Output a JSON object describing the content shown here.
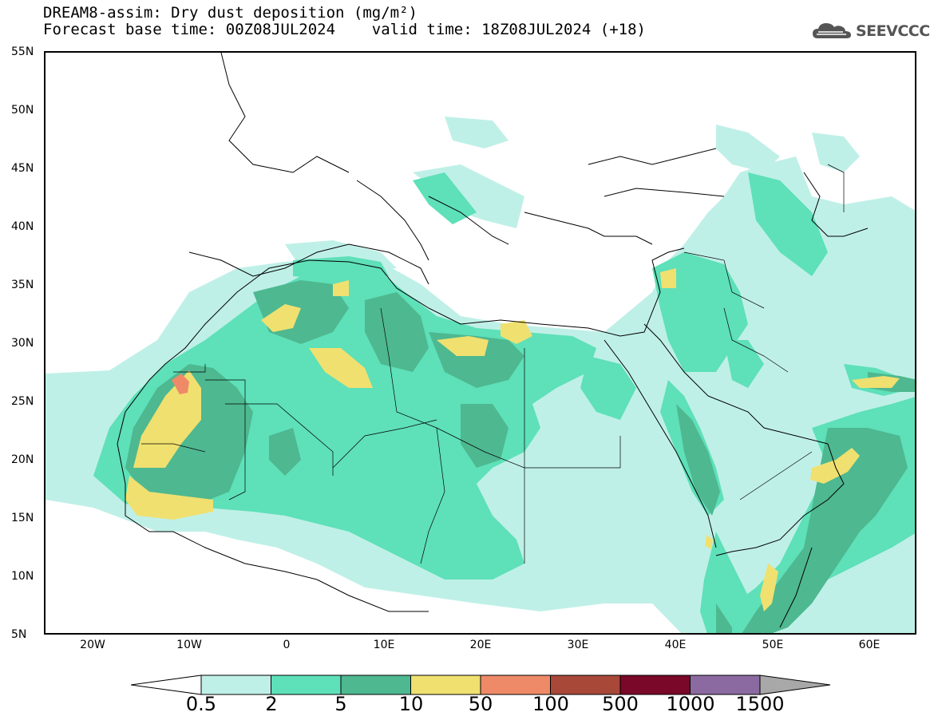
{
  "title": {
    "line1": "DREAM8-assim: Dry dust deposition (mg/m²)",
    "line2": "Forecast base time: 00Z08JUL2024    valid time: 18Z08JUL2024 (+18)"
  },
  "logo": {
    "text": "SEEVCCC",
    "icon": "cloud-icon"
  },
  "map": {
    "lat_labels": [
      "55N",
      "50N",
      "45N",
      "40N",
      "35N",
      "30N",
      "25N",
      "20N",
      "15N",
      "10N",
      "5N"
    ],
    "lon_labels": [
      "20W",
      "10W",
      "0",
      "10E",
      "20E",
      "30E",
      "40E",
      "50E",
      "60E"
    ],
    "lat_range": [
      5,
      55
    ],
    "lon_range": [
      -25,
      65
    ]
  },
  "legend": {
    "labels": [
      "0.5",
      "2",
      "5",
      "10",
      "50",
      "100",
      "500",
      "1000",
      "1500"
    ],
    "colors": [
      "#bff0e8",
      "#5ee0b8",
      "#4eb890",
      "#f0e070",
      "#ee8a68",
      "#a84838",
      "#7a0828",
      "#8a6aa0",
      "#a8a8a8"
    ]
  }
}
